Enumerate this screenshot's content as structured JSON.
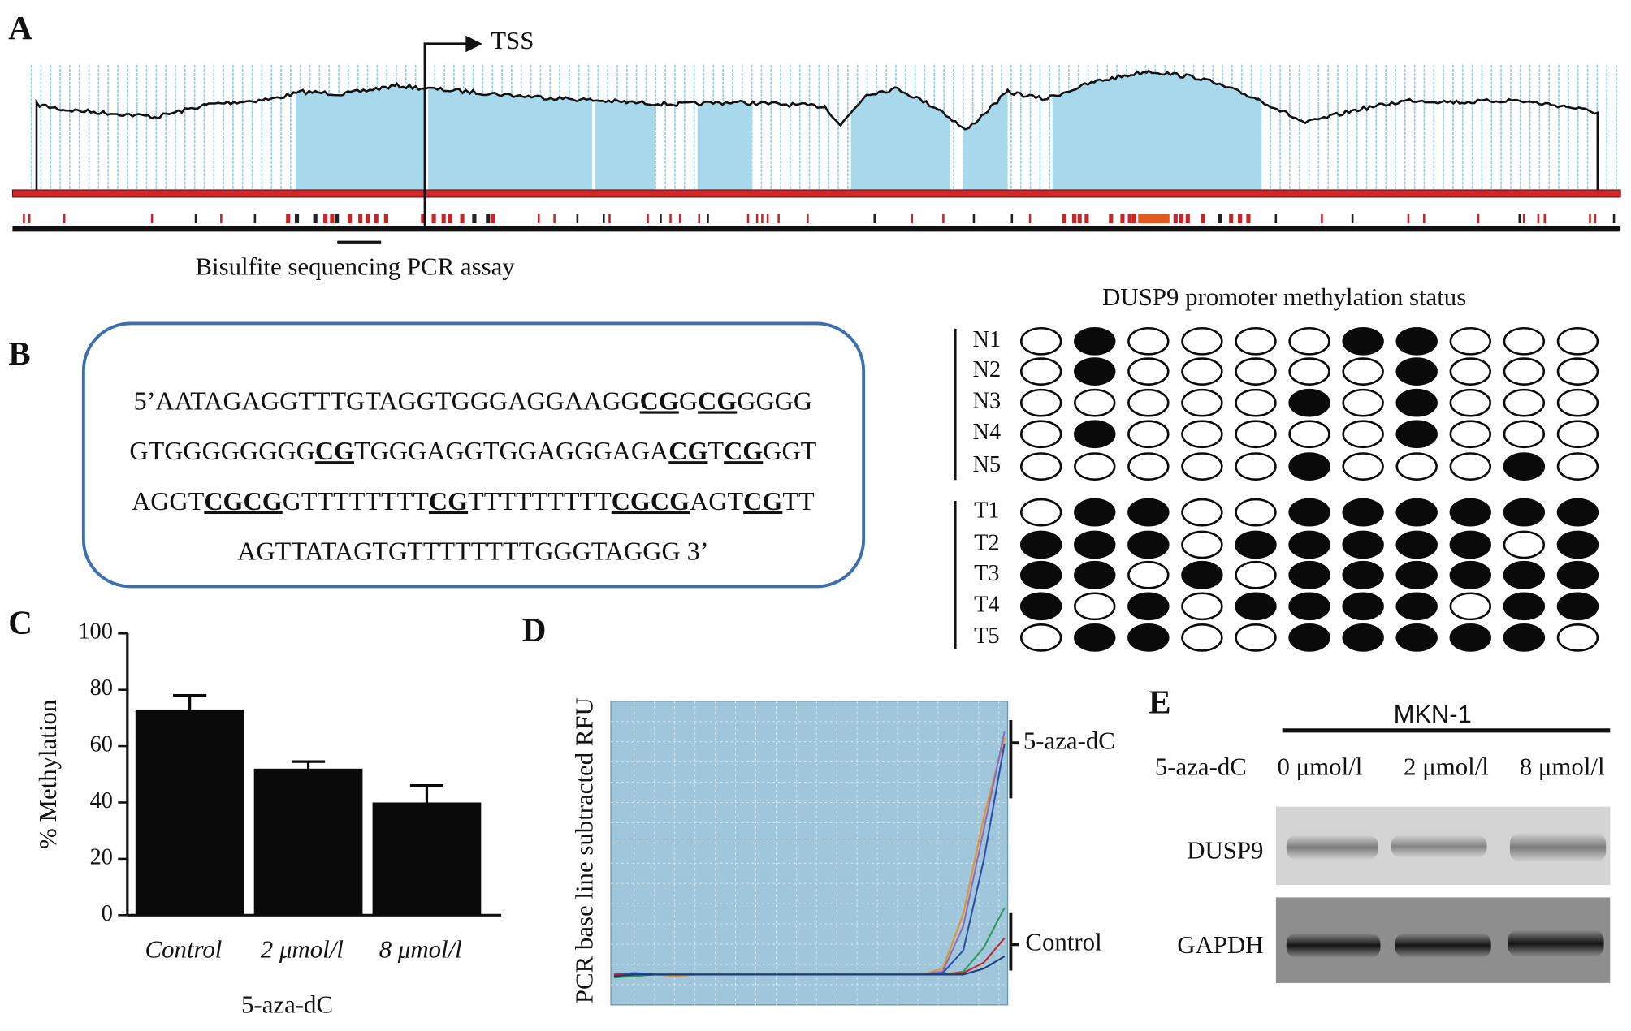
{
  "panel_labels": [
    "A",
    "B",
    "C",
    "D",
    "E"
  ],
  "cpg_map": {
    "tss_label": "TSS",
    "assay_label": "Bisulfite sequencing PCR assay"
  },
  "sequence": {
    "lines": [
      [
        "5’AATAGAGGTTTGTAGGTGGGAGGAAGG",
        "CG",
        "G",
        "CG",
        "GGGG"
      ],
      [
        "GTGGGGGGGG",
        "CG",
        "TGGGAGGTGGAGGGAGA",
        "CG",
        "T",
        "CG",
        "GGT"
      ],
      [
        "AGGT",
        "CGCG",
        "GTTTTTTTT",
        "CG",
        "TTTTTTTTT",
        "CGCG",
        "AGT",
        "CG",
        "TT"
      ],
      [
        "AGTTATAGTGTTTTTTTTGGGTAGGG 3’"
      ]
    ]
  },
  "methylation": {
    "title": "DUSP9 promoter methylation status",
    "rows": [
      {
        "label": "N1",
        "states": [
          0,
          1,
          0,
          0,
          0,
          0,
          1,
          1,
          0,
          0,
          0
        ]
      },
      {
        "label": "N2",
        "states": [
          0,
          1,
          0,
          0,
          0,
          0,
          0,
          1,
          0,
          0,
          0
        ]
      },
      {
        "label": "N3",
        "states": [
          0,
          0,
          0,
          0,
          0,
          1,
          0,
          1,
          0,
          0,
          0
        ]
      },
      {
        "label": "N4",
        "states": [
          0,
          1,
          0,
          0,
          0,
          0,
          0,
          1,
          0,
          0,
          0
        ]
      },
      {
        "label": "N5",
        "states": [
          0,
          0,
          0,
          0,
          0,
          1,
          0,
          0,
          0,
          1,
          0
        ]
      },
      {
        "label": "T1",
        "states": [
          0,
          1,
          1,
          0,
          0,
          1,
          1,
          1,
          1,
          1,
          1
        ]
      },
      {
        "label": "T2",
        "states": [
          1,
          1,
          1,
          0,
          1,
          1,
          1,
          1,
          1,
          0,
          1
        ]
      },
      {
        "label": "T3",
        "states": [
          1,
          1,
          0,
          1,
          0,
          1,
          1,
          1,
          1,
          1,
          1
        ]
      },
      {
        "label": "T4",
        "states": [
          1,
          0,
          1,
          0,
          1,
          1,
          1,
          1,
          0,
          1,
          1
        ]
      },
      {
        "label": "T5",
        "states": [
          0,
          1,
          1,
          0,
          0,
          1,
          1,
          1,
          1,
          1,
          0
        ]
      }
    ]
  },
  "chart_data": [
    {
      "type": "bar",
      "categories": [
        "Control",
        "2 μmol/l",
        "8 μmol/l"
      ],
      "values": [
        73,
        52,
        40
      ],
      "errors": [
        5,
        2.5,
        6
      ],
      "color": "#0a0a0a",
      "ylim": [
        0,
        100
      ],
      "yticks": [
        0,
        20,
        40,
        60,
        80,
        100
      ],
      "y_label": "% Methylation",
      "x_label": "5-aza-dC"
    },
    {
      "type": "line",
      "y_label": "PCR base line subtracted RFU",
      "annotations": [
        "5-aza-dC",
        "Control"
      ],
      "ylim": [
        0,
        100
      ],
      "grid": true,
      "series": [
        {
          "color": "#e8902a",
          "values": [
            9,
            10,
            10,
            9.5,
            10,
            10,
            10,
            10,
            10,
            10,
            10,
            10,
            10,
            10,
            10,
            10,
            12,
            30,
            62,
            88
          ]
        },
        {
          "color": "#8a6fbf",
          "values": [
            9.5,
            10,
            10,
            10,
            10,
            10,
            10,
            10,
            10,
            10,
            10,
            10,
            10,
            10,
            10,
            10,
            11,
            26,
            58,
            90
          ]
        },
        {
          "color": "#2b4fa8",
          "values": [
            10,
            10.5,
            10,
            10,
            10,
            10,
            10,
            10,
            10,
            10,
            10,
            10,
            10,
            10,
            10,
            10,
            10.5,
            18,
            48,
            86
          ]
        },
        {
          "color": "#2e9a5a",
          "values": [
            9,
            9.5,
            10,
            10,
            10,
            10,
            10,
            10,
            10,
            10,
            10,
            10,
            10,
            10,
            10,
            10,
            10,
            11,
            19,
            32
          ]
        },
        {
          "color": "#c0282d",
          "values": [
            10,
            10,
            10,
            10,
            10,
            10,
            10,
            10,
            10,
            10,
            10,
            10,
            10,
            10,
            10,
            10,
            10,
            10.5,
            14,
            22
          ]
        },
        {
          "color": "#1d3c7a",
          "values": [
            9.5,
            10,
            10,
            10,
            10,
            10,
            10,
            10,
            10,
            10,
            10,
            10,
            10,
            10,
            10,
            10,
            10,
            10,
            12,
            16
          ]
        }
      ]
    }
  ],
  "western_blot": {
    "cell_line": "MKN-1",
    "treatment": "5-aza-dC",
    "doses": [
      "0 μmol/l",
      "2 μmol/l",
      "8 μmol/l"
    ],
    "proteins": [
      "DUSP9",
      "GAPDH"
    ]
  }
}
